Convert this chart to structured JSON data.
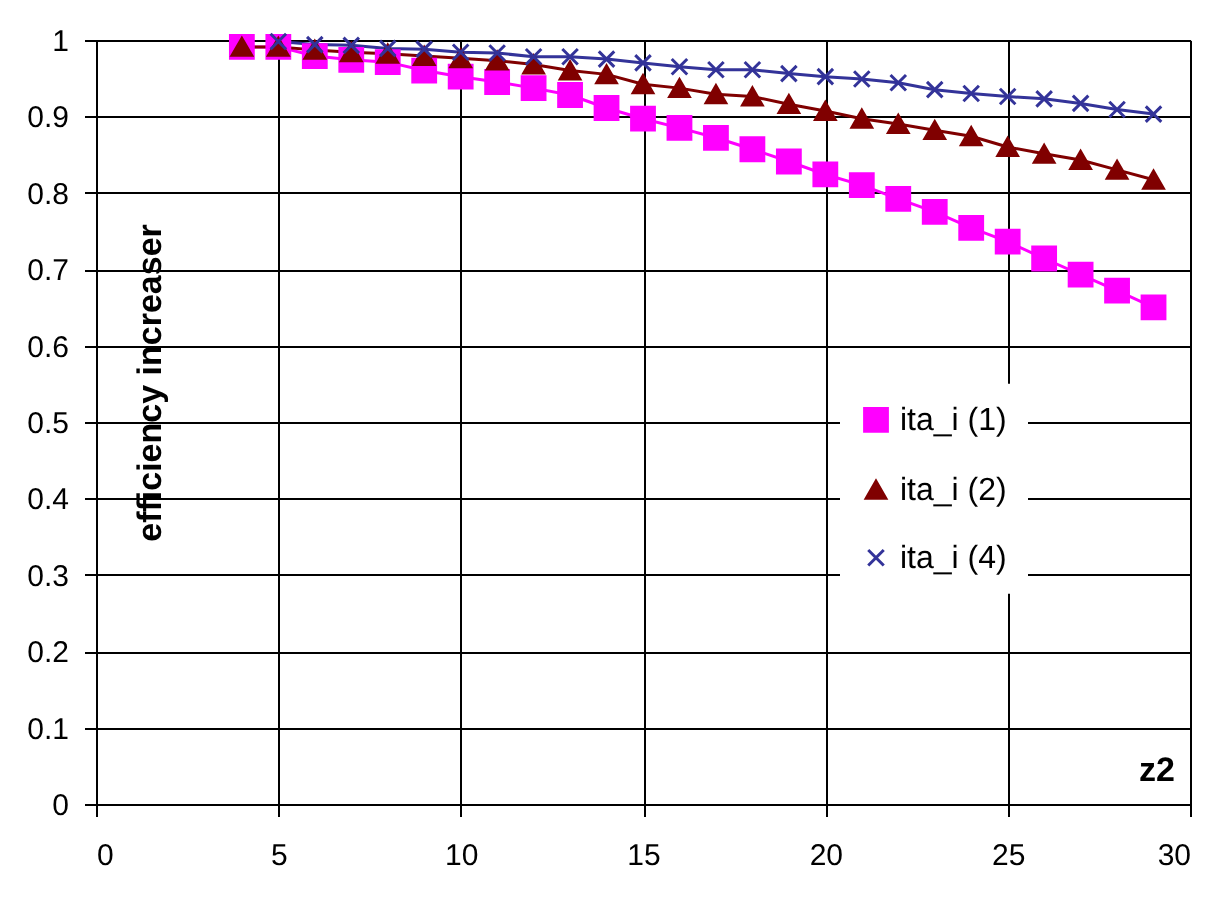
{
  "chart_data": {
    "type": "line",
    "xlabel": "z2",
    "ylabel": "efficiency increaser",
    "xlim": [
      0,
      30
    ],
    "xticks": [
      0,
      5,
      10,
      15,
      20,
      25,
      30
    ],
    "ylim": [
      0,
      1
    ],
    "yticks": [
      0,
      0.1,
      0.2,
      0.3,
      0.4,
      0.5,
      0.6,
      0.7,
      0.8,
      0.9,
      1
    ],
    "grid": true,
    "legend": "right",
    "series": [
      {
        "name": "ita_i (1)",
        "color": "#ff00ff",
        "marker": "square",
        "x": [
          4,
          5,
          6,
          7,
          8,
          9,
          10,
          11,
          12,
          13,
          14,
          15,
          16,
          17,
          18,
          19,
          20,
          21,
          22,
          23,
          24,
          25,
          26,
          27,
          28,
          29
        ],
        "values": [
          0.991,
          0.991,
          0.979,
          0.974,
          0.971,
          0.96,
          0.952,
          0.945,
          0.937,
          0.928,
          0.911,
          0.897,
          0.885,
          0.872,
          0.857,
          0.841,
          0.824,
          0.81,
          0.792,
          0.775,
          0.754,
          0.736,
          0.714,
          0.693,
          0.672,
          0.65
        ]
      },
      {
        "name": "ita_i (2)",
        "color": "#800000",
        "marker": "triangle",
        "x": [
          4,
          5,
          6,
          7,
          8,
          9,
          10,
          11,
          12,
          13,
          14,
          15,
          16,
          17,
          18,
          19,
          20,
          21,
          22,
          23,
          24,
          25,
          26,
          27,
          28,
          29
        ],
        "values": [
          0.991,
          0.991,
          0.987,
          0.984,
          0.982,
          0.979,
          0.976,
          0.973,
          0.968,
          0.96,
          0.955,
          0.942,
          0.937,
          0.929,
          0.926,
          0.916,
          0.907,
          0.897,
          0.89,
          0.882,
          0.874,
          0.86,
          0.851,
          0.843,
          0.83,
          0.817
        ]
      },
      {
        "name": "ita_i (4)",
        "color": "#333399",
        "marker": "cross",
        "x": [
          5,
          6,
          7,
          8,
          9,
          10,
          11,
          12,
          13,
          14,
          15,
          16,
          17,
          18,
          19,
          20,
          21,
          22,
          23,
          24,
          25,
          26,
          27,
          28,
          29
        ],
        "values": [
          0.998,
          0.994,
          0.993,
          0.989,
          0.988,
          0.984,
          0.983,
          0.978,
          0.978,
          0.975,
          0.97,
          0.965,
          0.961,
          0.961,
          0.956,
          0.952,
          0.949,
          0.944,
          0.935,
          0.93,
          0.926,
          0.923,
          0.917,
          0.909,
          0.903
        ]
      }
    ]
  }
}
